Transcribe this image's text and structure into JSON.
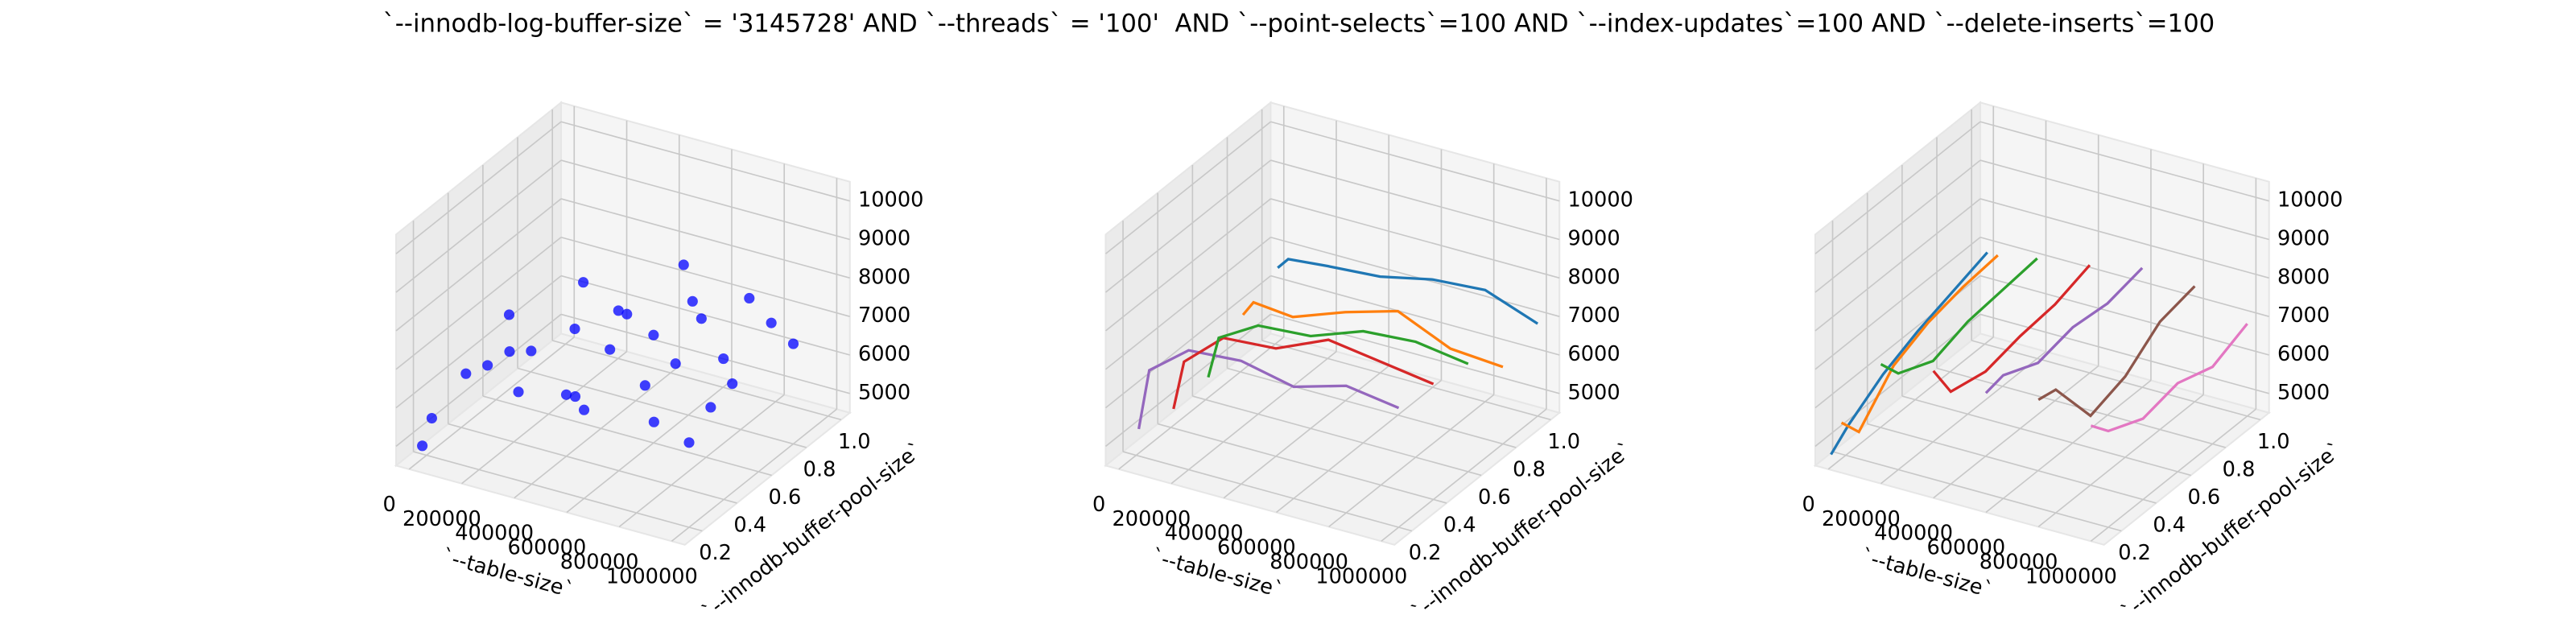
{
  "title": "`--innodb-log-buffer-size` = '3145728' AND `--threads` = '100'  AND `--point-selects`=100 AND `--index-updates`=100 AND `--delete-inserts`=100",
  "chart_data": [
    {
      "type": "scatter3d",
      "xlabel": "`--table-size`",
      "ylabel": "`--innodb-buffer-pool-size`",
      "color": "blue",
      "xlim": [
        -50000,
        1050000
      ],
      "ylim": [
        0.1,
        1.05
      ],
      "zlim": [
        4500,
        10500
      ],
      "xticks": [
        0,
        200000,
        400000,
        600000,
        800000,
        1000000
      ],
      "yticks": [
        0.2,
        0.4,
        0.6,
        0.8,
        {
          "value": 1,
          "label": "1.0"
        }
      ],
      "zticks": [
        5000,
        6000,
        7000,
        8000,
        9000,
        10000
      ],
      "x": [
        20000,
        50000,
        50000,
        100000,
        150000,
        200000,
        200000,
        250000,
        300000,
        300000,
        350000,
        400000,
        400000,
        450000,
        500000,
        500000,
        550000,
        600000,
        600000,
        650000,
        700000,
        700000,
        750000,
        800000,
        800000,
        850000,
        900000,
        950000,
        1000000,
        1000000
      ],
      "y": [
        0.2,
        0.1,
        0.6,
        0.4,
        0.2,
        0.8,
        0.5,
        0.3,
        0.9,
        0.6,
        0.2,
        0.7,
        0.4,
        1.0,
        0.5,
        0.3,
        0.9,
        0.6,
        0.2,
        0.8,
        0.4,
        1.0,
        0.5,
        0.7,
        0.3,
        0.9,
        0.6,
        0.4,
        0.8,
        0.2
      ],
      "z": [
        5500,
        5200,
        6800,
        6300,
        6900,
        7200,
        6500,
        7300,
        6200,
        6900,
        6800,
        7200,
        6100,
        7400,
        7100,
        6600,
        7000,
        7300,
        6800,
        7100,
        6900,
        7000,
        7200,
        6700,
        6500,
        7000,
        6600,
        6800,
        7100,
        6700
      ]
    },
    {
      "type": "line3d",
      "xlabel": "`--table-size`",
      "ylabel": "`--innodb-buffer-pool-size`",
      "xlim": [
        -50000,
        1050000
      ],
      "ylim": [
        0.1,
        1.05
      ],
      "zlim": [
        4500,
        10500
      ],
      "xticks": [
        0,
        200000,
        400000,
        600000,
        800000,
        1000000
      ],
      "yticks": [
        0.2,
        0.4,
        0.6,
        0.8,
        {
          "value": 1,
          "label": "1.0"
        }
      ],
      "zticks": [
        5000,
        6000,
        7000,
        8000,
        9000,
        10000
      ],
      "x": [
        10000,
        50000,
        200000,
        400000,
        600000,
        800000,
        1000000
      ],
      "series": [
        {
          "color": "#9467bd",
          "y": 0.2,
          "values": [
            5200,
            6800,
            7600,
            7700,
            7400,
            7800,
            7600
          ]
        },
        {
          "color": "#d62728",
          "y": 0.4,
          "values": [
            5000,
            6300,
            7200,
            7300,
            7900,
            7700,
            7500
          ]
        },
        {
          "color": "#2ca02c",
          "y": 0.6,
          "values": [
            5100,
            6200,
            6800,
            6900,
            7400,
            7500,
            7300
          ]
        },
        {
          "color": "#ff7f0e",
          "y": 0.8,
          "values": [
            6000,
            6400,
            6300,
            6800,
            7200,
            6600,
            6500
          ]
        },
        {
          "color": "#1f77b4",
          "y": 1.0,
          "values": [
            6500,
            6800,
            6900,
            7000,
            7300,
            7400,
            6900
          ]
        }
      ]
    },
    {
      "type": "line3d",
      "xlabel": "`--table-size`",
      "ylabel": "`--innodb-buffer-pool-size`",
      "xlim": [
        -50000,
        1050000
      ],
      "ylim": [
        0.1,
        1.05
      ],
      "zlim": [
        4500,
        10500
      ],
      "xticks": [
        0,
        200000,
        400000,
        600000,
        800000,
        1000000
      ],
      "yticks": [
        0.2,
        0.4,
        0.6,
        0.8,
        {
          "value": 1,
          "label": "1.0"
        }
      ],
      "zticks": [
        5000,
        6000,
        7000,
        8000,
        9000,
        10000
      ],
      "y": [
        0.1,
        0.2,
        0.4,
        0.6,
        0.8,
        1.0
      ],
      "series": [
        {
          "color": "#1f77b4",
          "x": 10000,
          "values": [
            4900,
            5300,
            5900,
            6300,
            6600,
            6900
          ]
        },
        {
          "color": "#ff7f0e",
          "x": 50000,
          "values": [
            5800,
            5200,
            6200,
            6600,
            6800,
            6900
          ]
        },
        {
          "color": "#2ca02c",
          "x": 200000,
          "values": [
            7600,
            7000,
            6600,
            6900,
            7000,
            7100
          ]
        },
        {
          "color": "#d62728",
          "x": 400000,
          "values": [
            7800,
            6900,
            6700,
            6900,
            7000,
            7300
          ]
        },
        {
          "color": "#9467bd",
          "x": 600000,
          "values": [
            7600,
            7700,
            7300,
            7500,
            7400,
            7600
          ]
        },
        {
          "color": "#8c564b",
          "x": 800000,
          "values": [
            7800,
            7700,
            6300,
            6600,
            7300,
            7500
          ]
        },
        {
          "color": "#e377c2",
          "x": 1000000,
          "values": [
            7500,
            7000,
            6600,
            6800,
            6500,
            6900
          ]
        }
      ]
    }
  ]
}
